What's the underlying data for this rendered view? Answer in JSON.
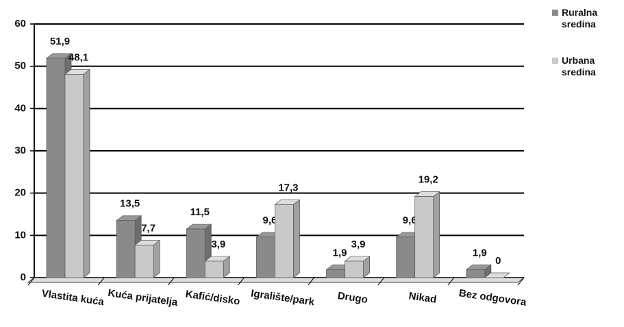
{
  "chart_data": {
    "type": "bar",
    "categories": [
      "Vlastita kuća",
      "Kuća prijatelja",
      "Kafić/disko",
      "Igralište/park",
      "Drugo",
      "Nikad",
      "Bez odgovora"
    ],
    "series": [
      {
        "name": "Ruralna sredina",
        "color": "#8a8a8a",
        "values": [
          51.9,
          13.5,
          11.5,
          9.6,
          1.9,
          9.6,
          1.9
        ],
        "value_labels": [
          "51,9",
          "13,5",
          "11,5",
          "9,6",
          "1,9",
          "9,6",
          "1,9"
        ]
      },
      {
        "name": "Urbana sredina",
        "color": "#c9c9c9",
        "values": [
          48.1,
          7.7,
          3.9,
          17.3,
          3.9,
          19.2,
          0
        ],
        "value_labels": [
          "48,1",
          "7,7",
          "3,9",
          "17,3",
          "3,9",
          "19,2",
          "0"
        ]
      }
    ],
    "ylim": [
      0,
      60
    ],
    "yticks": [
      0,
      10,
      20,
      30,
      40,
      50,
      60
    ],
    "grid": true,
    "legend": "top-right"
  }
}
